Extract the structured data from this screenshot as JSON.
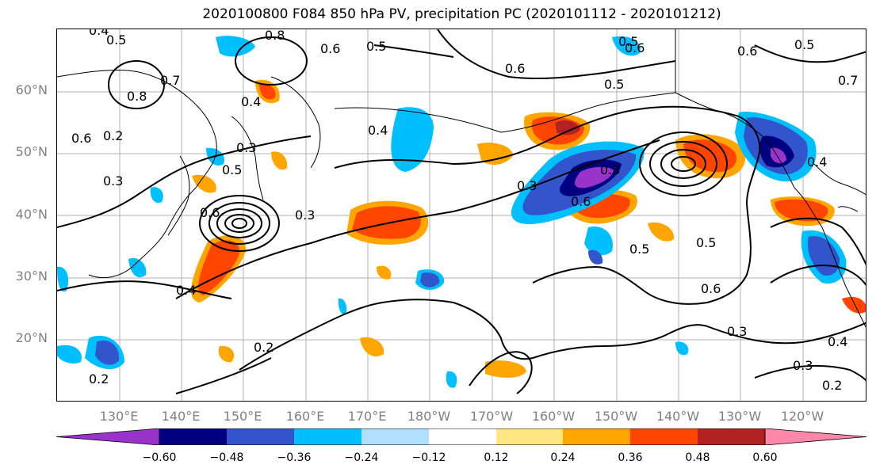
{
  "title": "2020100800 F084 850 hPa PV, precipitation PC (2020101112 - 2020101212)",
  "map": {
    "lat_labels": [
      "60°N",
      "50°N",
      "40°N",
      "30°N",
      "20°N"
    ],
    "lon_labels": [
      "130°E",
      "140°E",
      "150°E",
      "160°E",
      "170°E",
      "180°W",
      "170°W",
      "160°W",
      "150°W",
      "140°W",
      "130°W",
      "120°W"
    ],
    "contour_labels": [
      "0.4",
      "0.5",
      "0.8",
      "0.6",
      "0.5",
      "0.7",
      "0.8",
      "0.4",
      "0.3",
      "0.6",
      "0.2",
      "0.5",
      "0.6",
      "0.3",
      "0.4",
      "0.3",
      "0.3",
      "0.5",
      "0.2",
      "0.4",
      "0.6",
      "0.5",
      "0.3",
      "0.6",
      "0.2",
      "0.2",
      "0.3",
      "0.4",
      "0.3",
      "0.5",
      "0.6",
      "0.6",
      "0.5",
      "0.6",
      "0.4",
      "0.5",
      "0.7"
    ],
    "grid": true,
    "contour_color": "#000000"
  },
  "colorbar": {
    "colors": [
      "#9933cc",
      "#000080",
      "#3355cc",
      "#00bfff",
      "#b0e0ff",
      "#ffffff",
      "#ffe680",
      "#ffa500",
      "#ff4500",
      "#b22222",
      "#ff88aa"
    ],
    "tick_labels": [
      "−0.60",
      "−0.48",
      "−0.36",
      "−0.24",
      "−0.12",
      "0.12",
      "0.24",
      "0.36",
      "0.48",
      "0.60"
    ],
    "extend": "both"
  }
}
